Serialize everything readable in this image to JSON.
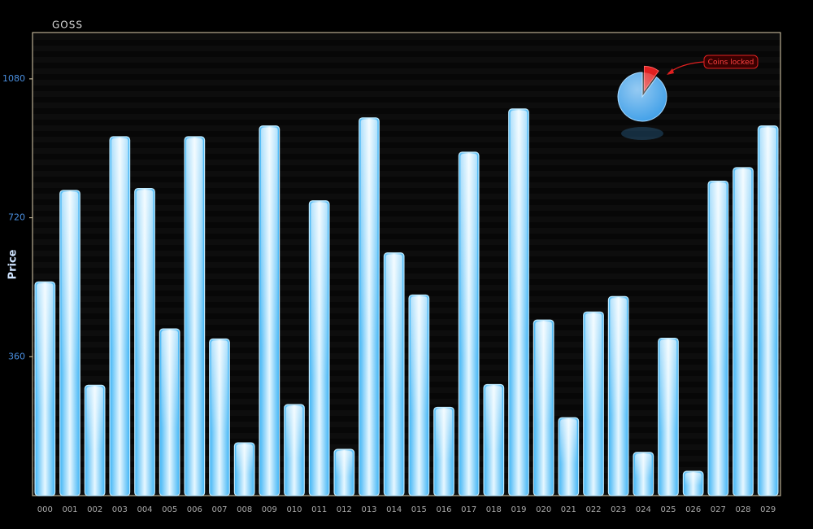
{
  "chart_data": [
    {
      "type": "bar",
      "title": "GOSS",
      "y_label": "Price",
      "categories": [
        "000",
        "001",
        "002",
        "003",
        "004",
        "005",
        "006",
        "007",
        "008",
        "009",
        "010",
        "011",
        "012",
        "013",
        "014",
        "015",
        "016",
        "017",
        "018",
        "019",
        "020",
        "021",
        "022",
        "023",
        "024",
        "025",
        "026",
        "027",
        "028",
        "029"
      ],
      "values": [
        554,
        791,
        286,
        930,
        796,
        432,
        930,
        406,
        137,
        958,
        236,
        764,
        120,
        979,
        629,
        520,
        229,
        890,
        288,
        1002,
        455,
        202,
        476,
        516,
        112,
        408,
        63,
        815,
        850,
        958
      ],
      "color": "#3fb4f5",
      "ylim": [
        0,
        1200
      ],
      "yticks": [
        360,
        720,
        1080
      ]
    },
    {
      "type": "pie",
      "values": [
        90,
        10
      ],
      "colors": [
        "#3f9fe8",
        "#e02020"
      ],
      "annotation": "Coins locked"
    }
  ]
}
